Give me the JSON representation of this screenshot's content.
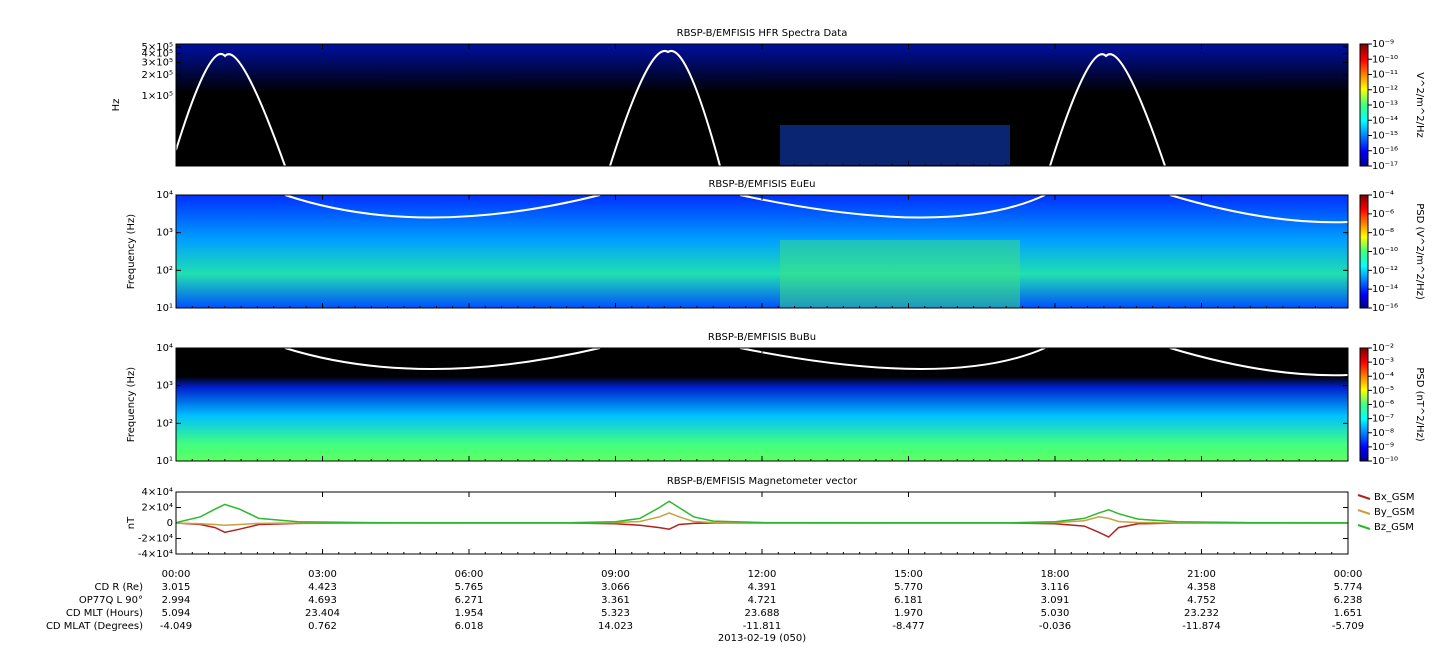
{
  "chart_data": [
    {
      "type": "heatmap",
      "title": "RBSP-B/EMFISIS  HFR Spectra Data",
      "ylabel": "Hz",
      "log_y": true,
      "ylim": [
        10000,
        550000
      ],
      "yticks": [
        {
          "value": 500000,
          "label": "5×10⁵"
        },
        {
          "value": 400000,
          "label": "4×10⁵"
        },
        {
          "value": 300000,
          "label": "3×10⁵"
        },
        {
          "value": 200000,
          "label": "2×10⁵"
        },
        {
          "value": 100000,
          "label": "1×10⁵"
        }
      ],
      "colorbar": {
        "label": "V^2/m^2/Hz",
        "log": true,
        "lim": [
          1e-17,
          1e-09
        ],
        "ticks": [
          {
            "value": 1e-09,
            "label": "10⁻⁹"
          },
          {
            "value": 1e-10,
            "label": "10⁻¹⁰"
          },
          {
            "value": 1e-11,
            "label": "10⁻¹¹"
          },
          {
            "value": 1e-12,
            "label": "10⁻¹²"
          },
          {
            "value": 1e-13,
            "label": "10⁻¹³"
          },
          {
            "value": 1e-14,
            "label": "10⁻¹⁴"
          },
          {
            "value": 1e-15,
            "label": "10⁻¹⁵"
          },
          {
            "value": 1e-16,
            "label": "10⁻¹⁶"
          },
          {
            "value": 1e-17,
            "label": "10⁻¹⁷"
          }
        ]
      }
    },
    {
      "type": "heatmap",
      "title": "RBSP-B/EMFISIS  EuEu",
      "ylabel": "Frequency (Hz)",
      "log_y": true,
      "ylim": [
        10,
        10000
      ],
      "yticks": [
        {
          "value": 10,
          "label": "10¹"
        },
        {
          "value": 100,
          "label": "10²"
        },
        {
          "value": 1000,
          "label": "10³"
        },
        {
          "value": 10000,
          "label": "10⁴"
        }
      ],
      "colorbar": {
        "label": "PSD (V^2/m^2/Hz)",
        "log": true,
        "lim": [
          1e-16,
          0.0001
        ],
        "ticks": [
          {
            "value": 0.0001,
            "label": "10⁻⁴"
          },
          {
            "value": 1e-06,
            "label": "10⁻⁶"
          },
          {
            "value": 1e-08,
            "label": "10⁻⁸"
          },
          {
            "value": 1e-10,
            "label": "10⁻¹⁰"
          },
          {
            "value": 1e-12,
            "label": "10⁻¹²"
          },
          {
            "value": 1e-14,
            "label": "10⁻¹⁴"
          },
          {
            "value": 1e-16,
            "label": "10⁻¹⁶"
          }
        ]
      }
    },
    {
      "type": "heatmap",
      "title": "RBSP-B/EMFISIS  BuBu",
      "ylabel": "Frequency (Hz)",
      "log_y": true,
      "ylim": [
        10,
        10000
      ],
      "yticks": [
        {
          "value": 10,
          "label": "10¹"
        },
        {
          "value": 100,
          "label": "10²"
        },
        {
          "value": 1000,
          "label": "10³"
        },
        {
          "value": 10000,
          "label": "10⁴"
        }
      ],
      "colorbar": {
        "label": "PSD (nT^2/Hz)",
        "log": true,
        "lim": [
          1e-10,
          0.01
        ],
        "ticks": [
          {
            "value": 0.01,
            "label": "10⁻²"
          },
          {
            "value": 0.001,
            "label": "10⁻³"
          },
          {
            "value": 0.0001,
            "label": "10⁻⁴"
          },
          {
            "value": 1e-05,
            "label": "10⁻⁵"
          },
          {
            "value": 1e-06,
            "label": "10⁻⁶"
          },
          {
            "value": 1e-07,
            "label": "10⁻⁷"
          },
          {
            "value": 1e-08,
            "label": "10⁻⁸"
          },
          {
            "value": 1e-09,
            "label": "10⁻⁹"
          },
          {
            "value": 1e-10,
            "label": "10⁻¹⁰"
          }
        ]
      }
    },
    {
      "type": "line",
      "title": "RBSP-B/EMFISIS  Magnetometer vector",
      "ylabel": "nT",
      "ylim": [
        -40000,
        40000
      ],
      "yticks": [
        {
          "value": 40000,
          "label": "4×10⁴"
        },
        {
          "value": 20000,
          "label": "2×10⁴"
        },
        0,
        {
          "value": -20000,
          "label": "-2×10⁴"
        },
        {
          "value": -40000,
          "label": "-4×10⁴"
        }
      ],
      "x": [
        0,
        0.5,
        0.8,
        1.0,
        1.3,
        1.7,
        2.5,
        4,
        6,
        8,
        9,
        9.5,
        9.9,
        10.1,
        10.3,
        10.6,
        11,
        12,
        15,
        17,
        18,
        18.6,
        18.9,
        19.1,
        19.3,
        19.7,
        20.5,
        22,
        24
      ],
      "series": [
        {
          "name": "Bx_GSM",
          "color": "#b22222",
          "values": [
            0,
            -2000,
            -6000,
            -12000,
            -8000,
            -2000,
            -500,
            0,
            0,
            0,
            -1000,
            -3000,
            -6000,
            -8000,
            -2000,
            -500,
            0,
            0,
            0,
            0,
            -1000,
            -4000,
            -12000,
            -18000,
            -6000,
            -1000,
            0,
            0,
            0
          ]
        },
        {
          "name": "By_GSM",
          "color": "#c8a040",
          "values": [
            0,
            -1000,
            -2000,
            -3000,
            -2000,
            -500,
            0,
            0,
            0,
            0,
            500,
            2000,
            8000,
            13000,
            8000,
            2000,
            500,
            0,
            0,
            0,
            500,
            3000,
            8000,
            6000,
            2000,
            500,
            0,
            0,
            0
          ]
        },
        {
          "name": "Bz_GSM",
          "color": "#2eb82e",
          "values": [
            500,
            8000,
            18000,
            24000,
            18000,
            6000,
            1500,
            500,
            300,
            300,
            1500,
            6000,
            20000,
            28000,
            20000,
            8000,
            2500,
            600,
            300,
            300,
            1500,
            6000,
            13000,
            17000,
            12000,
            5000,
            1500,
            500,
            300
          ]
        }
      ]
    }
  ],
  "xaxis": {
    "xlim": [
      0,
      24
    ],
    "xticks": [
      {
        "value": 0,
        "label": "00:00"
      },
      {
        "value": 3,
        "label": "03:00"
      },
      {
        "value": 6,
        "label": "06:00"
      },
      {
        "value": 9,
        "label": "09:00"
      },
      {
        "value": 12,
        "label": "12:00"
      },
      {
        "value": 15,
        "label": "15:00"
      },
      {
        "value": 18,
        "label": "18:00"
      },
      {
        "value": 21,
        "label": "21:00"
      },
      {
        "value": 24,
        "label": "00:00"
      }
    ],
    "date": "2013-02-19 (050)"
  },
  "ephemeris": {
    "rows": [
      {
        "label": "CD R (Re)",
        "values": [
          "3.015",
          "4.423",
          "5.765",
          "3.066",
          "4.391",
          "5.770",
          "3.116",
          "4.358",
          "5.774"
        ]
      },
      {
        "label": "OP77Q L 90°",
        "values": [
          "2.994",
          "4.693",
          "6.271",
          "3.361",
          "4.721",
          "6.181",
          "3.091",
          "4.752",
          "6.238"
        ]
      },
      {
        "label": "CD MLT (Hours)",
        "values": [
          "5.094",
          "23.404",
          "1.954",
          "5.323",
          "23.688",
          "1.970",
          "5.030",
          "23.232",
          "1.651"
        ]
      },
      {
        "label": "CD MLAT (Degrees)",
        "values": [
          "-4.049",
          "0.762",
          "6.018",
          "14.023",
          "-11.811",
          "-8.477",
          "-0.036",
          "-11.874",
          "-5.709"
        ]
      }
    ]
  }
}
